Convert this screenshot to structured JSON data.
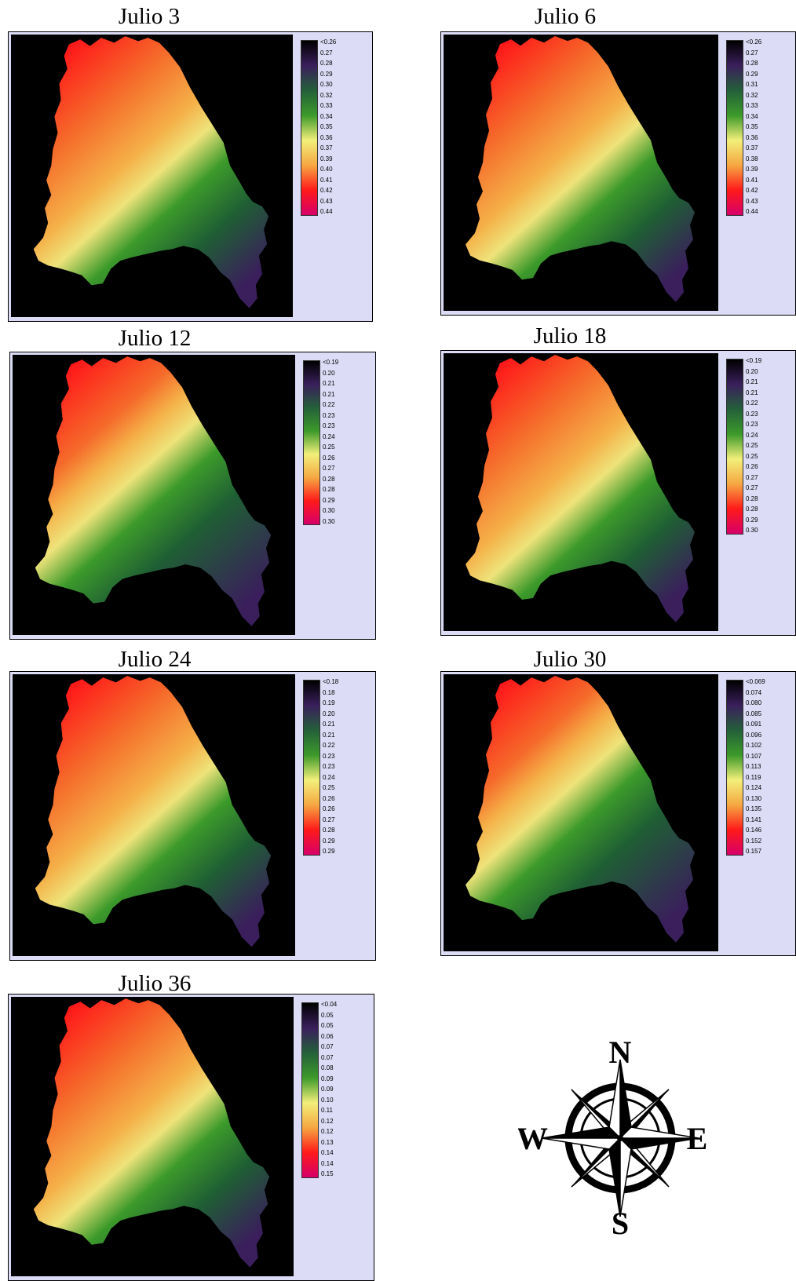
{
  "panels": [
    {
      "title": "Julio 3",
      "legend": [
        "<0.26",
        "0.27",
        "0.28",
        "0.29",
        "0.30",
        "0.32",
        "0.33",
        "0.34",
        "0.35",
        "0.36",
        "0.37",
        "0.39",
        "0.40",
        "0.41",
        "0.42",
        "0.43",
        "0.44"
      ]
    },
    {
      "title": "Julio 6",
      "legend": [
        "<0.26",
        "0.27",
        "0.28",
        "0.29",
        "0.31",
        "0.32",
        "0.33",
        "0.34",
        "0.35",
        "0.36",
        "0.37",
        "0.38",
        "0.39",
        "0.41",
        "0.42",
        "0.43",
        "0.44"
      ]
    },
    {
      "title": "Julio 12",
      "legend": [
        "<0.19",
        "0.20",
        "0.21",
        "0.21",
        "0.22",
        "0.23",
        "0.23",
        "0.24",
        "0.25",
        "0.26",
        "0.27",
        "0.28",
        "0.28",
        "0.29",
        "0.30",
        "0.30"
      ]
    },
    {
      "title": "Julio 18",
      "legend": [
        "<0.19",
        "0.20",
        "0.21",
        "0.21",
        "0.22",
        "0.23",
        "0.23",
        "0.24",
        "0.25",
        "0.25",
        "0.26",
        "0.27",
        "0.27",
        "0.28",
        "0.28",
        "0.29",
        "0.30"
      ]
    },
    {
      "title": "Julio 24",
      "legend": [
        "<0.18",
        "0.18",
        "0.19",
        "0.20",
        "0.21",
        "0.21",
        "0.22",
        "0.23",
        "0.23",
        "0.24",
        "0.25",
        "0.26",
        "0.26",
        "0.27",
        "0.28",
        "0.29",
        "0.29"
      ]
    },
    {
      "title": "Julio 30",
      "legend": [
        "<0.069",
        "0.074",
        "0.080",
        "0.085",
        "0.091",
        "0.096",
        "0.102",
        "0.107",
        "0.113",
        "0.119",
        "0.124",
        "0.130",
        "0.135",
        "0.141",
        "0.146",
        "0.152",
        "0.157"
      ]
    },
    {
      "title": "Julio 36",
      "legend": [
        "<0.04",
        "0.05",
        "0.05",
        "0.06",
        "0.07",
        "0.07",
        "0.08",
        "0.09",
        "0.09",
        "0.10",
        "0.11",
        "0.12",
        "0.12",
        "0.13",
        "0.14",
        "0.14",
        "0.15"
      ]
    }
  ],
  "compass": {
    "n": "N",
    "s": "S",
    "e": "E",
    "w": "W"
  },
  "colors": {
    "ramp": [
      "#000000",
      "#3a1f5c",
      "#24603a",
      "#3c9a2a",
      "#f2ef7a",
      "#f5a742",
      "#ff1a1a",
      "#d6006a"
    ],
    "panel_bg": "#dcdcf6",
    "map_bg": "#000000"
  }
}
